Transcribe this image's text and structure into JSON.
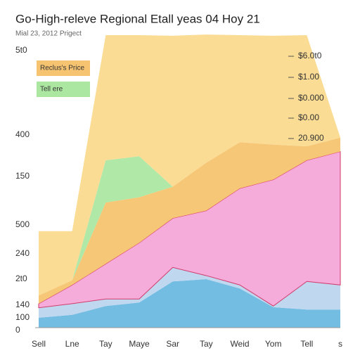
{
  "chart_data": {
    "type": "stacked_area",
    "title": "Go-High-releve Regional Etall yeas 04 Hoy 21",
    "subtitle": "Mial 23, 2012 Prigect",
    "categories": [
      "Sell",
      "Lne",
      "Tay",
      "Maye",
      "Sar",
      "Tay",
      "Weid",
      "Yom",
      "Tell",
      "s"
    ],
    "ylim": [
      0,
      500
    ],
    "left_axis_labels": [
      "5t0",
      "400",
      "150",
      "500",
      "240",
      "2t0",
      "140",
      "100",
      "0"
    ],
    "right_axis_labels": [
      "$6.0t0",
      "$1.00",
      "$0.000",
      "$0.00",
      "20.900"
    ],
    "series": [
      {
        "color": "#6cb9e2",
        "values": [
          17,
          22,
          37,
          43,
          79,
          83,
          67,
          35,
          31,
          31
        ]
      },
      {
        "color": "#bcd5ee",
        "values": [
          17,
          19,
          12,
          6,
          24,
          6,
          6,
          2,
          48,
          42
        ]
      },
      {
        "color": "#f5a8d8",
        "values": [
          7,
          32,
          60,
          96,
          84,
          111,
          165,
          216,
          207,
          228
        ]
      },
      {
        "name": "Reclus's Price",
        "color": "#f6c470",
        "values": [
          14,
          8,
          105,
          78,
          54,
          82,
          79,
          60,
          24,
          24
        ]
      },
      {
        "name": "Tell ere",
        "color": "#ace7a2",
        "values": [
          0,
          0,
          72,
          70,
          0,
          0,
          0,
          0,
          0,
          0
        ]
      },
      {
        "color": "#fbda8e",
        "values": [
          110,
          84,
          214,
          207,
          258,
          219,
          183,
          186,
          190,
          0
        ]
      }
    ]
  }
}
